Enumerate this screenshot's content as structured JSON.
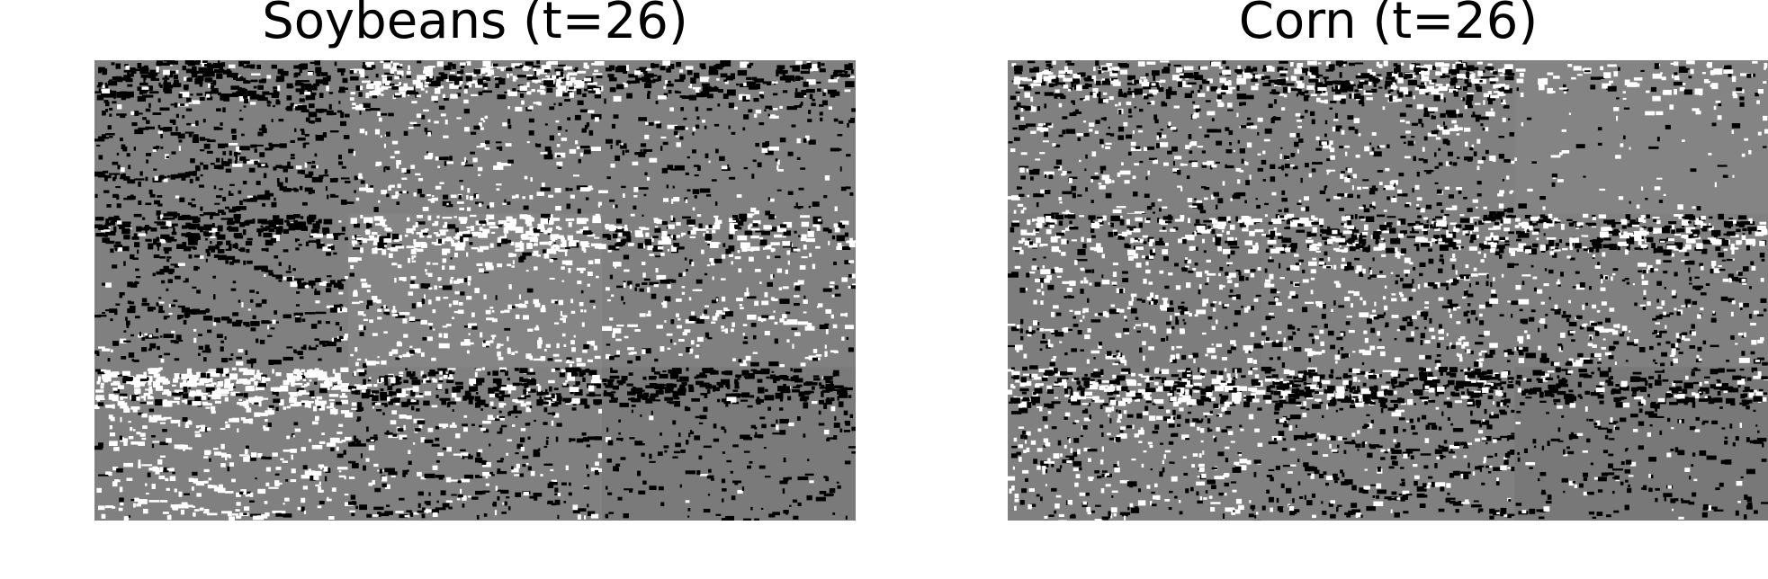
{
  "panels": [
    {
      "title": "Soybeans (t=26)"
    },
    {
      "title": "Corn (t=26)"
    }
  ],
  "colors": {
    "background": "#ffffff",
    "field_gray": "#808080",
    "black": "#000000",
    "white": "#ffffff"
  }
}
